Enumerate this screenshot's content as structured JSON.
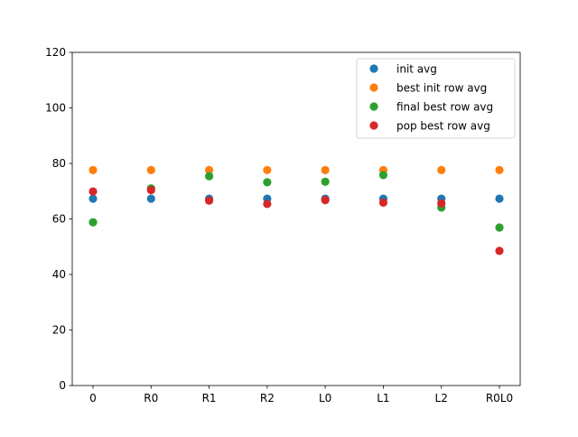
{
  "chart_data": {
    "type": "scatter",
    "categories": [
      "0",
      "R0",
      "R1",
      "R2",
      "L0",
      "L1",
      "L2",
      "R0L0"
    ],
    "ylim": [
      0,
      120
    ],
    "yticks": [
      0,
      20,
      40,
      60,
      80,
      100,
      120
    ],
    "grid": false,
    "legend_position": "top-right",
    "series": [
      {
        "name": "init avg",
        "color": "#1f77b4",
        "values": [
          67.3,
          67.3,
          67.3,
          67.3,
          67.3,
          67.3,
          67.3,
          67.3
        ]
      },
      {
        "name": "best init row avg",
        "color": "#ff7f0e",
        "values": [
          77.6,
          77.6,
          77.6,
          77.6,
          77.6,
          77.6,
          77.6,
          77.6
        ]
      },
      {
        "name": "final best row avg",
        "color": "#2ca02c",
        "values": [
          58.8,
          71.0,
          75.4,
          73.2,
          73.4,
          75.8,
          64.1,
          56.9
        ]
      },
      {
        "name": "pop best row avg",
        "color": "#d62728",
        "values": [
          69.9,
          70.4,
          66.6,
          65.4,
          66.8,
          65.9,
          65.6,
          48.5
        ]
      }
    ]
  }
}
